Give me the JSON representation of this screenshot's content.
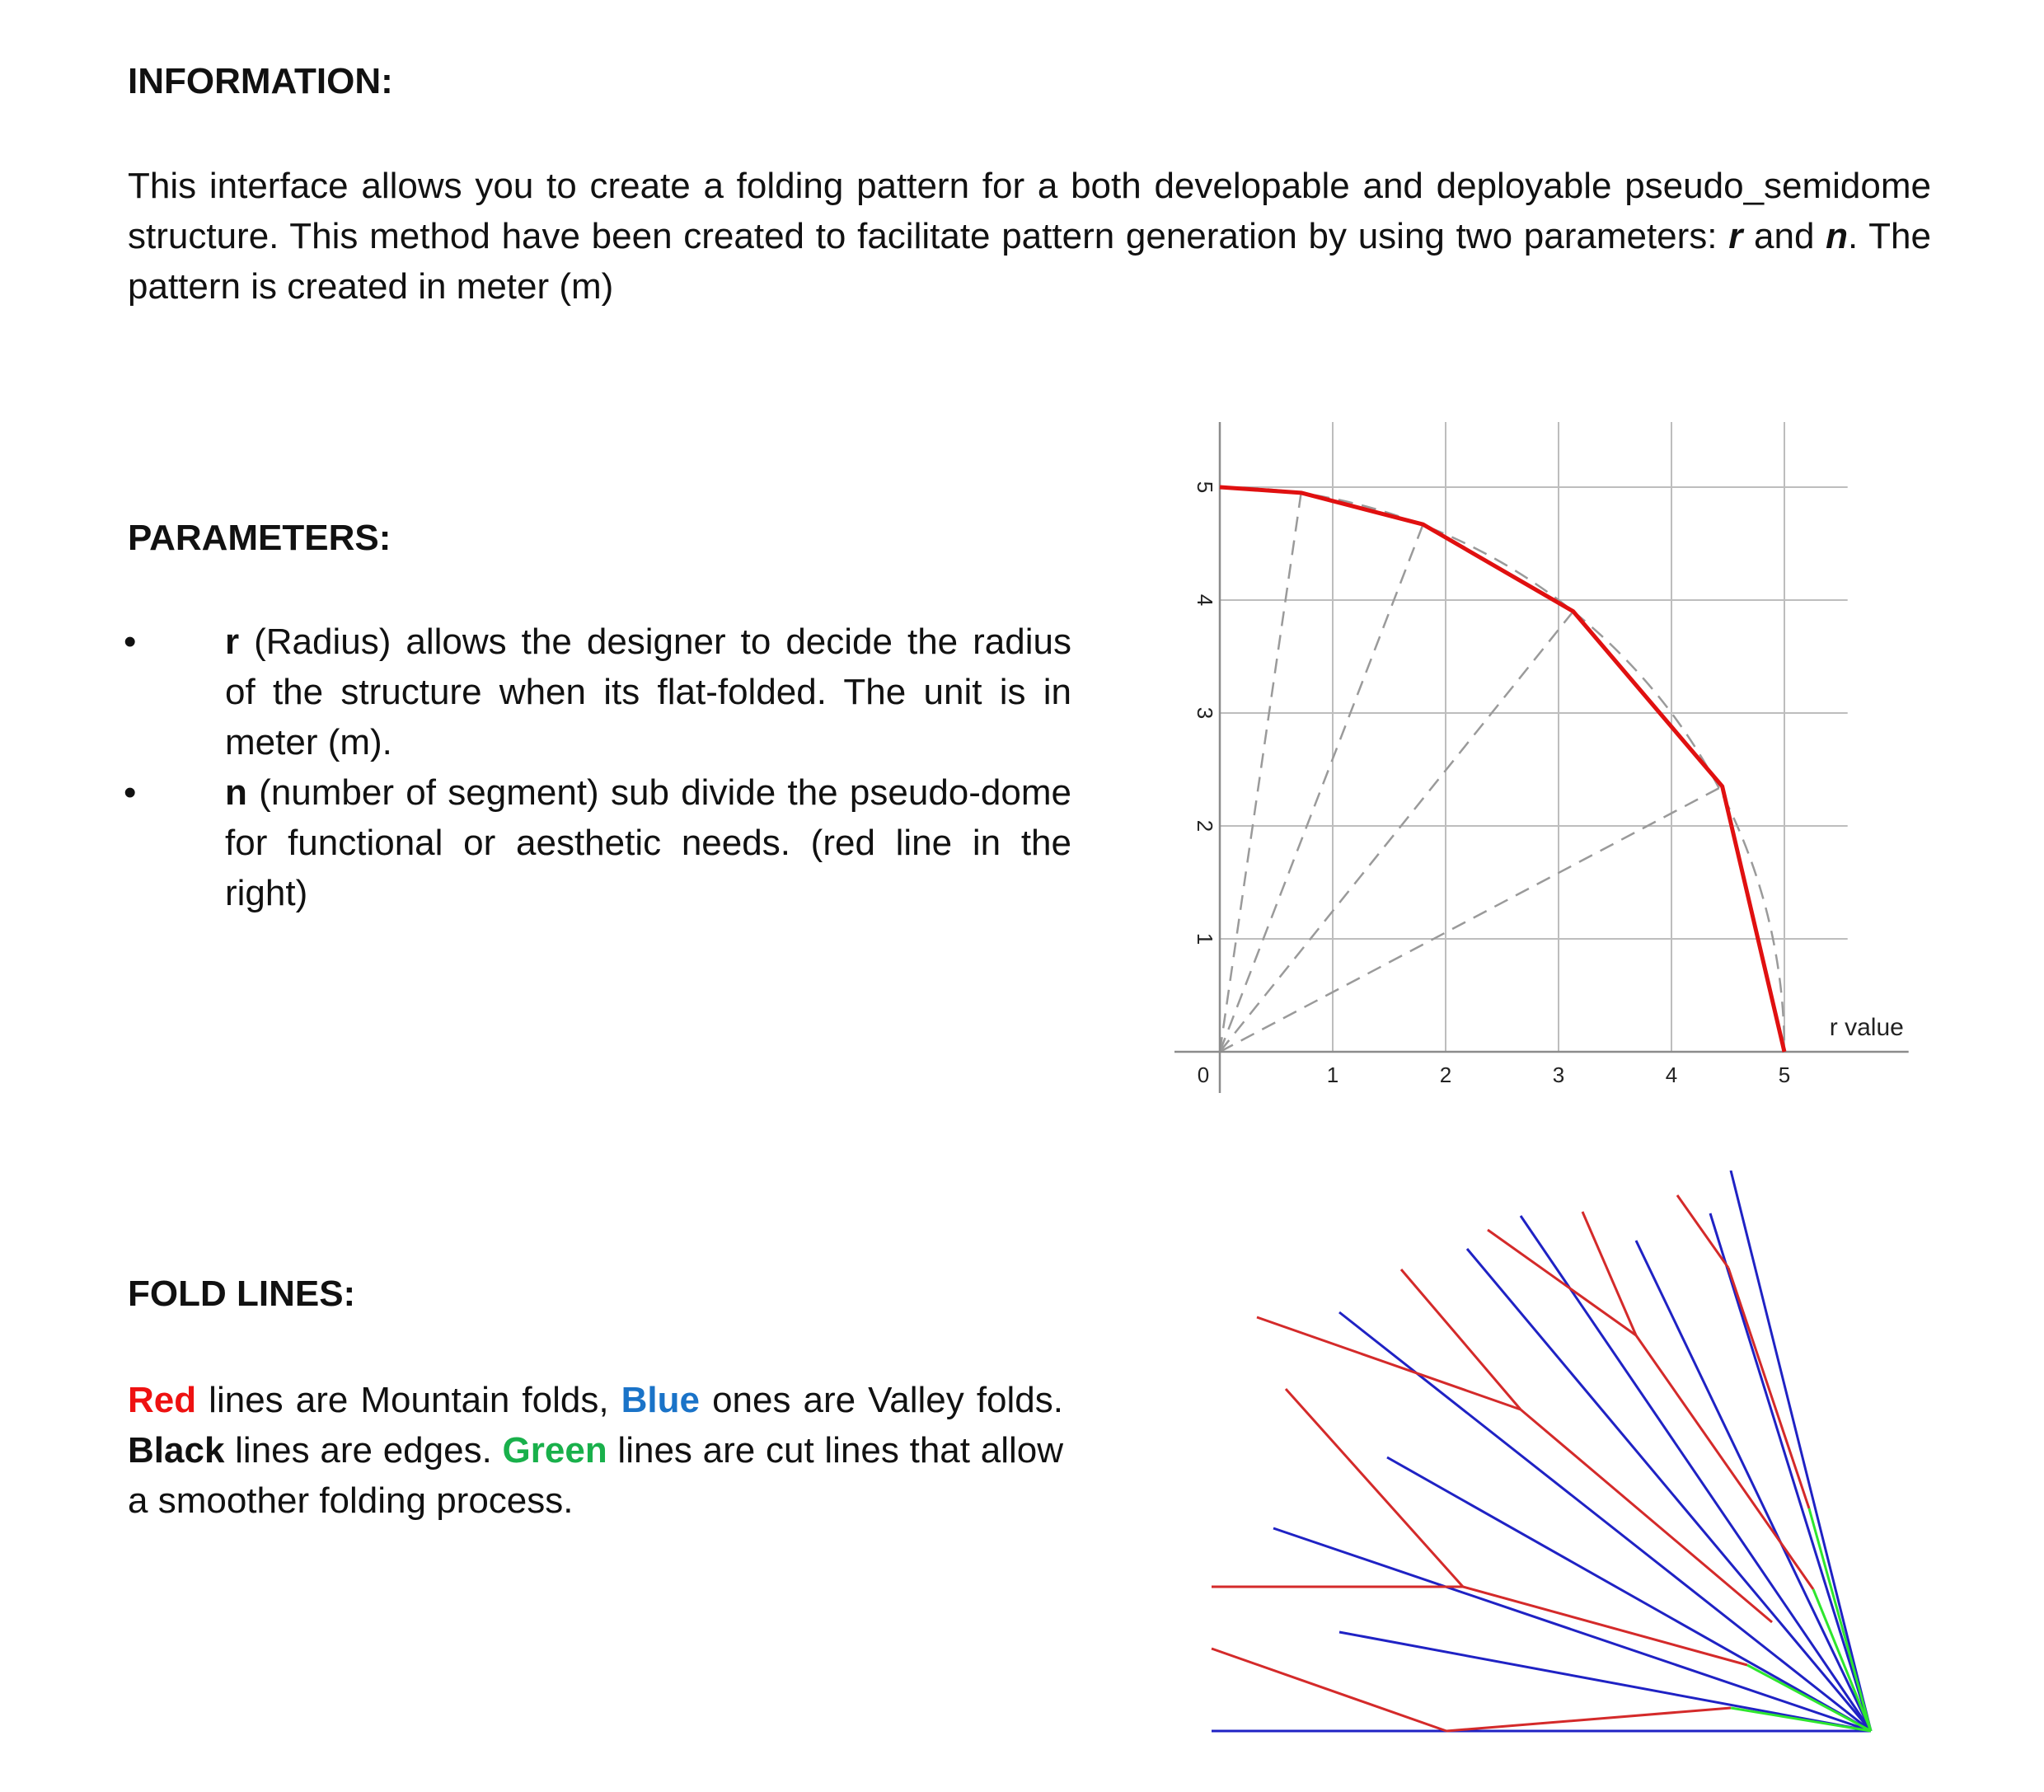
{
  "information": {
    "heading": "INFORMATION:",
    "text_1": "This interface allows you to create a folding pattern for a both developable and deployable pseudo_semidome structure. This method have been created to facilitate pattern generation by using two parameters: ",
    "param_r": "r",
    "and_word": " and ",
    "param_n": "n",
    "text_2": ". The pattern is created in meter (m)"
  },
  "parameters": {
    "heading": "PARAMETERS:",
    "bullet_glyph": "•",
    "items": [
      {
        "key": "r",
        "text": " (Radius) allows the designer to  decide the radius of the structure when its flat-folded. The unit is in meter (m)."
      },
      {
        "key": "n",
        "text": " (number of segment) sub divide the pseudo-dome for functional or aesthetic needs. (red line in the right)"
      }
    ]
  },
  "fold_lines": {
    "heading": "FOLD LINES:",
    "red_word": "Red",
    "text_1": " lines are Mountain folds, ",
    "blue_word": "Blue",
    "text_2": "  ones are Valley folds. ",
    "black_word": "Black",
    "text_3": " lines are edges.  ",
    "green_word": "Green",
    "text_4": "  lines are cut lines that allow a smoother folding process."
  },
  "chart_data": {
    "type": "line",
    "title": "",
    "xlabel": "r value",
    "ylabel": "",
    "xlim": [
      0,
      5
    ],
    "ylim": [
      0,
      5
    ],
    "x_ticks": [
      "0",
      "1",
      "2",
      "3",
      "4",
      "5"
    ],
    "y_ticks": [
      "1",
      "2",
      "3",
      "4",
      "5"
    ],
    "grid": true,
    "series": [
      {
        "color": "#e01010",
        "points": [
          [
            0,
            5
          ],
          [
            0.72,
            4.95
          ],
          [
            1.8,
            4.67
          ],
          [
            3.13,
            3.9
          ],
          [
            4.45,
            2.35
          ],
          [
            5,
            0
          ]
        ]
      }
    ],
    "reference_arc_radius": 5,
    "radial_lines_from_origin": true
  },
  "fold_pattern": {
    "colors": {
      "mountain": "#d42a2a",
      "valley": "#1f22c4",
      "cut": "#2ee62e"
    }
  }
}
